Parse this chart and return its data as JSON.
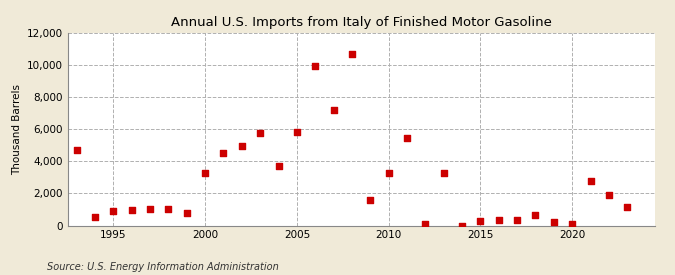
{
  "title": "Annual U.S. Imports from Italy of Finished Motor Gasoline",
  "ylabel": "Thousand Barrels",
  "source": "Source: U.S. Energy Information Administration",
  "background_color": "#f0ead8",
  "plot_background_color": "#ffffff",
  "marker_color": "#cc0000",
  "marker": "s",
  "marker_size": 4,
  "xlim": [
    1992.5,
    2024.5
  ],
  "ylim": [
    0,
    12000
  ],
  "yticks": [
    0,
    2000,
    4000,
    6000,
    8000,
    10000,
    12000
  ],
  "xticks": [
    1995,
    2000,
    2005,
    2010,
    2015,
    2020
  ],
  "years": [
    1993,
    1994,
    1995,
    1996,
    1997,
    1998,
    1999,
    2000,
    2001,
    2002,
    2003,
    2004,
    2005,
    2006,
    2007,
    2008,
    2009,
    2010,
    2011,
    2012,
    2013,
    2014,
    2015,
    2016,
    2017,
    2018,
    2019,
    2020,
    2021,
    2022,
    2023
  ],
  "values": [
    4700,
    500,
    900,
    950,
    1000,
    1050,
    750,
    3250,
    4550,
    4950,
    5750,
    3700,
    5850,
    9950,
    7200,
    10700,
    1600,
    3300,
    5450,
    100,
    3300,
    0,
    300,
    350,
    350,
    650,
    200,
    100,
    2750,
    1900,
    1150
  ]
}
